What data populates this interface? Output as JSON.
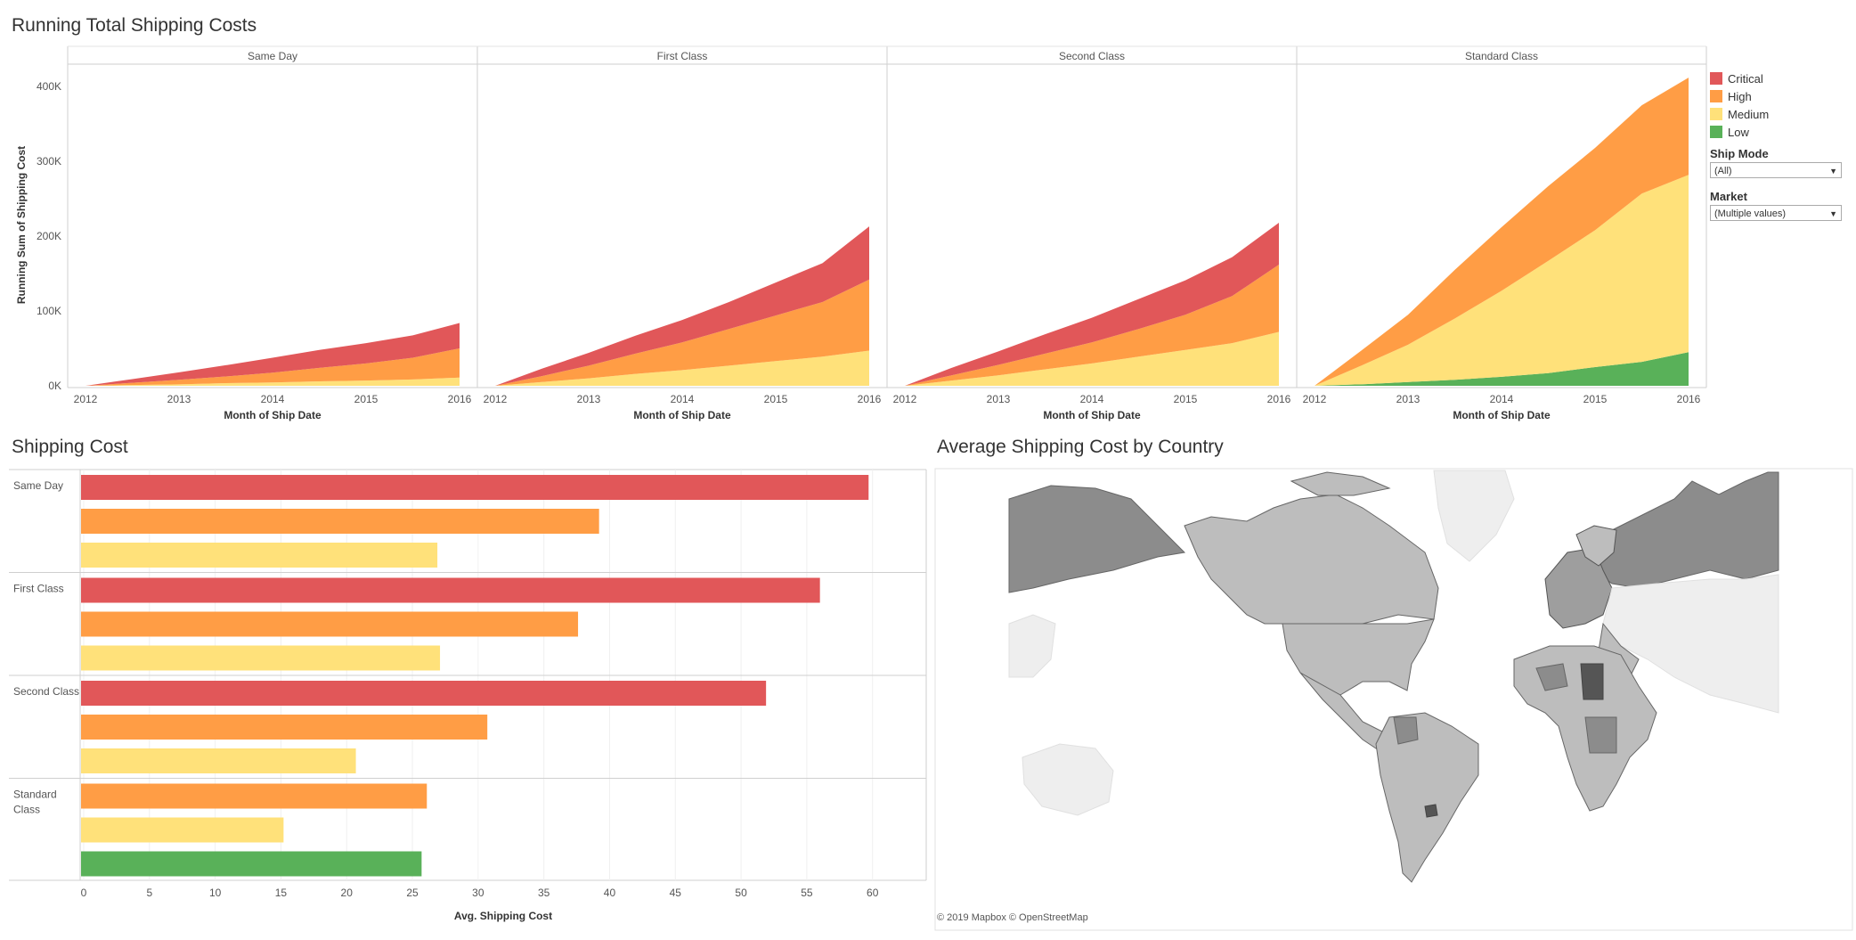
{
  "titles": {
    "running": "Running Total Shipping Costs",
    "shipping": "Shipping Cost",
    "map": "Average Shipping Cost by Country"
  },
  "colors": {
    "Critical": "#e15759",
    "High": "#ff9d45",
    "Medium": "#ffe17a",
    "Low": "#59b159"
  },
  "legend": {
    "items": [
      "Critical",
      "High",
      "Medium",
      "Low"
    ]
  },
  "filters": {
    "ship_mode_label": "Ship Mode",
    "ship_mode_value": "(All)",
    "market_label": "Market",
    "market_value": "(Multiple values)"
  },
  "map": {
    "attribution": "© 2019 Mapbox © OpenStreetMap"
  },
  "chart_data": [
    {
      "type": "area",
      "title": "Running Total Shipping Costs",
      "ylabel": "Running Sum of Shipping Cost",
      "xlabel": "Month of Ship Date",
      "ylim": [
        0,
        430000
      ],
      "yticks": [
        0,
        100000,
        200000,
        300000,
        400000
      ],
      "ytick_labels": [
        "0K",
        "100K",
        "200K",
        "300K",
        "400K"
      ],
      "x": [
        2012,
        2012.5,
        2013,
        2013.5,
        2014,
        2014.5,
        2015,
        2015.5,
        2016
      ],
      "xtick_labels": [
        "2012",
        "2013",
        "2014",
        "2015",
        "2016"
      ],
      "stacked": true,
      "panels": [
        {
          "name": "Same Day",
          "series": [
            {
              "name": "Medium",
              "values": [
                0,
                1000,
                2000,
                3500,
                4500,
                6000,
                7000,
                8500,
                11000
              ]
            },
            {
              "name": "High",
              "values": [
                0,
                3000,
                6000,
                9000,
                13000,
                18000,
                23000,
                29000,
                39000
              ]
            },
            {
              "name": "Critical",
              "values": [
                0,
                5000,
                10000,
                15000,
                20000,
                24000,
                27000,
                30000,
                34000
              ]
            }
          ]
        },
        {
          "name": "First Class",
          "series": [
            {
              "name": "Medium",
              "values": [
                0,
                5000,
                10000,
                16000,
                21000,
                27000,
                33000,
                39000,
                47000
              ]
            },
            {
              "name": "High",
              "values": [
                0,
                8000,
                17000,
                27000,
                37000,
                49000,
                61000,
                73000,
                95000
              ]
            },
            {
              "name": "Critical",
              "values": [
                0,
                10000,
                17000,
                24000,
                30000,
                36000,
                44000,
                52000,
                71000
              ]
            }
          ]
        },
        {
          "name": "Second Class",
          "series": [
            {
              "name": "Medium",
              "values": [
                0,
                7000,
                14000,
                22000,
                30000,
                39000,
                48000,
                57000,
                72000
              ]
            },
            {
              "name": "High",
              "values": [
                0,
                7000,
                14000,
                21000,
                28000,
                37000,
                47000,
                63000,
                90000
              ]
            },
            {
              "name": "Critical",
              "values": [
                0,
                10000,
                18000,
                26000,
                33000,
                40000,
                46000,
                52000,
                56000
              ]
            }
          ]
        },
        {
          "name": "Standard Class",
          "series": [
            {
              "name": "Low",
              "values": [
                0,
                2000,
                5000,
                8000,
                12000,
                17000,
                25000,
                32000,
                45000
              ]
            },
            {
              "name": "Medium",
              "values": [
                0,
                25000,
                50000,
                82000,
                115000,
                150000,
                183000,
                225000,
                237000
              ]
            },
            {
              "name": "High",
              "values": [
                0,
                20000,
                40000,
                65000,
                85000,
                100000,
                110000,
                118000,
                130000
              ]
            }
          ]
        }
      ]
    },
    {
      "type": "bar",
      "orientation": "horizontal",
      "title": "Shipping Cost",
      "xlabel": "Avg. Shipping Cost",
      "xlim": [
        0,
        63
      ],
      "xticks": [
        0,
        5,
        10,
        15,
        20,
        25,
        30,
        35,
        40,
        45,
        50,
        55,
        60
      ],
      "groups": [
        {
          "name": "Same Day",
          "bars": [
            {
              "priority": "Critical",
              "value": 59.7
            },
            {
              "priority": "High",
              "value": 39.2
            },
            {
              "priority": "Medium",
              "value": 26.9
            }
          ]
        },
        {
          "name": "First Class",
          "bars": [
            {
              "priority": "Critical",
              "value": 56.0
            },
            {
              "priority": "High",
              "value": 37.6
            },
            {
              "priority": "Medium",
              "value": 27.1
            }
          ]
        },
        {
          "name": "Second Class",
          "bars": [
            {
              "priority": "Critical",
              "value": 51.9
            },
            {
              "priority": "High",
              "value": 30.7
            },
            {
              "priority": "Medium",
              "value": 20.7
            }
          ]
        },
        {
          "name": "Standard Class",
          "bars": [
            {
              "priority": "High",
              "value": 26.1
            },
            {
              "priority": "Medium",
              "value": 15.2
            },
            {
              "priority": "Low",
              "value": 25.7
            }
          ]
        }
      ]
    }
  ]
}
